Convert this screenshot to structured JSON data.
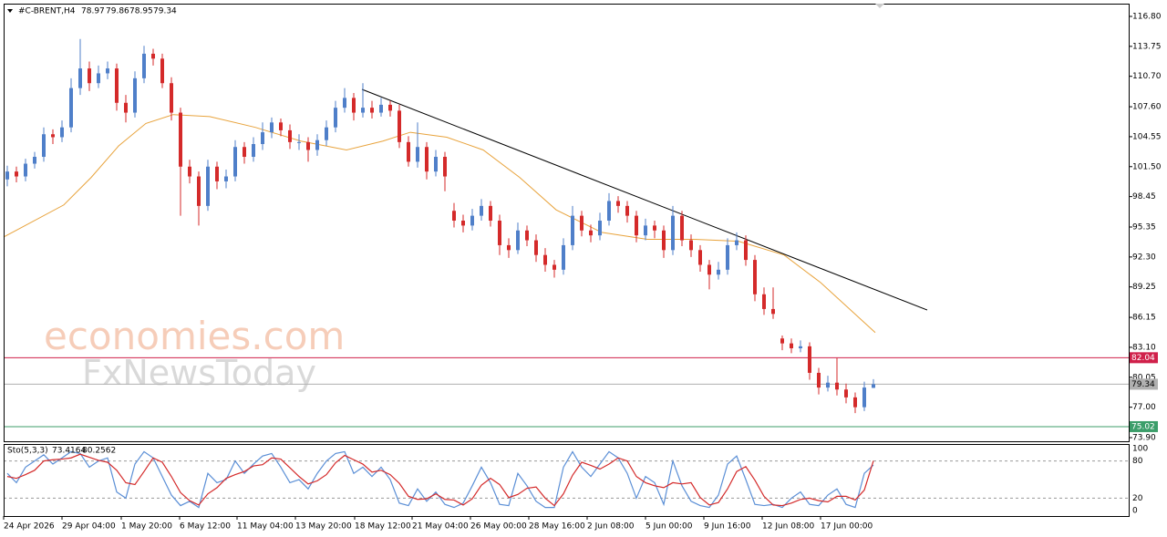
{
  "chart_data": {
    "type": "candlestick",
    "title": "#C-BRENT,H4",
    "watermark": [
      "economies.com",
      "FxNewsToday"
    ],
    "bull_color": "#4f7fc9",
    "bear_color": "#d42a2a",
    "xlim": [
      -0.4,
      123
    ],
    "ylim": [
      73.53,
      118.1
    ],
    "yticks": [
      {
        "value": 116.8,
        "label": "116.80"
      },
      113.75,
      {
        "value": 110.7,
        "label": "110.70"
      },
      {
        "value": 107.6,
        "label": "107.60"
      },
      104.55,
      {
        "value": 101.5,
        "label": "101.50"
      },
      98.45,
      95.35,
      {
        "value": 92.3,
        "label": "92.30"
      },
      89.25,
      86.15,
      {
        "value": 83.1,
        "label": "83.10"
      },
      80.05,
      {
        "value": 77.0,
        "label": "77.00"
      },
      {
        "value": 73.9,
        "label": "73.90"
      }
    ],
    "xticks": [
      {
        "value": -0.4,
        "label": "24 Apr 2026"
      },
      {
        "value": 6.0,
        "label": "29 Apr 04:00"
      },
      {
        "value": 12.5,
        "label": "1 May 20:00"
      },
      {
        "value": 18.9,
        "label": "6 May 12:00"
      },
      {
        "value": 25.2,
        "label": "11 May 04:00"
      },
      {
        "value": 31.6,
        "label": "13 May 20:00"
      },
      {
        "value": 38.1,
        "label": "18 May 12:00"
      },
      {
        "value": 44.4,
        "label": "21 May 04:00"
      },
      {
        "value": 50.8,
        "label": "26 May 00:00"
      },
      {
        "value": 57.2,
        "label": "28 May 16:00"
      },
      {
        "value": 63.6,
        "label": "2 Jun 08:00"
      },
      {
        "value": 70.0,
        "label": "5 Jun 00:00"
      },
      {
        "value": 76.4,
        "label": "9 Jun 16:00"
      },
      {
        "value": 82.8,
        "label": "12 Jun 08:00"
      },
      {
        "value": 89.2,
        "label": "17 Jun 00:00"
      }
    ],
    "candles": [
      [
        100.2,
        101.6,
        99.5,
        101.0
      ],
      [
        101.0,
        101.5,
        99.9,
        100.5
      ],
      [
        100.5,
        102.3,
        100.0,
        101.8
      ],
      [
        101.8,
        103.0,
        101.3,
        102.5
      ],
      [
        102.5,
        105.5,
        102.0,
        104.8
      ],
      [
        104.8,
        105.3,
        103.8,
        104.5
      ],
      [
        104.5,
        106.2,
        104.0,
        105.5
      ],
      [
        105.5,
        110.5,
        105.0,
        109.5
      ],
      [
        109.5,
        114.5,
        108.8,
        111.5
      ],
      [
        111.5,
        112.2,
        109.2,
        110.0
      ],
      [
        110.0,
        111.8,
        109.5,
        111.0
      ],
      [
        111.0,
        112.2,
        110.4,
        111.5
      ],
      [
        111.5,
        112.0,
        107.2,
        108.0
      ],
      [
        108.0,
        108.8,
        106.0,
        107.0
      ],
      [
        107.0,
        111.2,
        106.5,
        110.5
      ],
      [
        110.5,
        113.8,
        110.0,
        113.0
      ],
      [
        113.0,
        113.5,
        111.8,
        112.5
      ],
      [
        112.5,
        113.0,
        109.5,
        110.0
      ],
      [
        110.0,
        110.6,
        106.2,
        107.0
      ],
      [
        107.0,
        107.5,
        96.5,
        101.5
      ],
      [
        101.5,
        102.2,
        99.8,
        100.5
      ],
      [
        100.5,
        101.0,
        95.5,
        97.5
      ],
      [
        97.5,
        102.2,
        97.0,
        101.5
      ],
      [
        101.5,
        102.0,
        99.2,
        100.0
      ],
      [
        100.0,
        101.2,
        99.3,
        100.5
      ],
      [
        100.5,
        104.2,
        100.0,
        103.5
      ],
      [
        103.5,
        104.0,
        101.8,
        102.5
      ],
      [
        102.5,
        104.5,
        102.0,
        103.8
      ],
      [
        103.8,
        106.0,
        103.2,
        105.0
      ],
      [
        105.0,
        106.5,
        104.4,
        106.0
      ],
      [
        106.0,
        106.4,
        104.6,
        105.2
      ],
      [
        105.2,
        105.8,
        103.3,
        104.0
      ],
      [
        104.0,
        104.8,
        103.2,
        104.0
      ],
      [
        104.0,
        104.5,
        102.0,
        103.2
      ],
      [
        103.2,
        104.8,
        102.6,
        104.2
      ],
      [
        104.2,
        106.2,
        103.6,
        105.5
      ],
      [
        105.5,
        108.2,
        105.0,
        107.5
      ],
      [
        107.5,
        109.5,
        107.0,
        108.5
      ],
      [
        108.5,
        109.0,
        106.2,
        107.0
      ],
      [
        107.0,
        110.0,
        106.5,
        107.5
      ],
      [
        107.5,
        108.2,
        106.4,
        107.0
      ],
      [
        107.0,
        108.5,
        106.6,
        107.8
      ],
      [
        107.8,
        108.2,
        106.6,
        107.2
      ],
      [
        107.2,
        107.8,
        103.4,
        104.0
      ],
      [
        104.0,
        104.6,
        101.5,
        102.0
      ],
      [
        102.0,
        106.0,
        101.4,
        103.5
      ],
      [
        103.5,
        104.0,
        100.2,
        101.0
      ],
      [
        101.0,
        103.2,
        100.5,
        102.5
      ],
      [
        102.5,
        103.0,
        99.0,
        100.5
      ],
      [
        97.0,
        97.8,
        95.3,
        96.0
      ],
      [
        96.0,
        96.6,
        94.8,
        95.5
      ],
      [
        95.5,
        97.2,
        95.0,
        96.5
      ],
      [
        96.5,
        98.2,
        96.0,
        97.5
      ],
      [
        97.5,
        98.0,
        95.4,
        96.0
      ],
      [
        96.0,
        96.6,
        92.5,
        93.5
      ],
      [
        93.5,
        94.2,
        92.2,
        93.0
      ],
      [
        93.0,
        95.8,
        92.6,
        95.0
      ],
      [
        95.0,
        95.5,
        93.4,
        94.0
      ],
      [
        94.0,
        94.6,
        91.8,
        92.5
      ],
      [
        92.5,
        93.2,
        90.8,
        91.5
      ],
      [
        91.5,
        92.0,
        90.2,
        91.0
      ],
      [
        91.0,
        94.2,
        90.5,
        93.5
      ],
      [
        93.5,
        97.5,
        93.0,
        96.5
      ],
      [
        96.5,
        97.0,
        94.4,
        95.0
      ],
      [
        95.0,
        95.6,
        93.8,
        94.5
      ],
      [
        94.5,
        96.8,
        94.0,
        96.0
      ],
      [
        96.0,
        98.8,
        95.5,
        98.0
      ],
      [
        98.0,
        98.5,
        96.8,
        97.5
      ],
      [
        97.5,
        98.0,
        95.8,
        96.5
      ],
      [
        96.5,
        97.0,
        93.8,
        94.5
      ],
      [
        94.5,
        96.2,
        94.0,
        95.5
      ],
      [
        95.5,
        96.0,
        94.2,
        95.0
      ],
      [
        95.0,
        95.5,
        92.2,
        93.0
      ],
      [
        93.0,
        97.5,
        92.5,
        96.5
      ],
      [
        96.5,
        97.0,
        93.4,
        94.0
      ],
      [
        94.0,
        94.6,
        92.3,
        93.0
      ],
      [
        93.0,
        93.5,
        90.8,
        91.5
      ],
      [
        91.5,
        92.0,
        89.0,
        90.5
      ],
      [
        90.5,
        91.8,
        90.0,
        91.0
      ],
      [
        91.0,
        94.2,
        90.5,
        93.5
      ],
      [
        93.5,
        94.8,
        93.0,
        94.0
      ],
      [
        94.0,
        94.5,
        91.4,
        92.0
      ],
      [
        92.0,
        92.5,
        87.8,
        88.5
      ],
      [
        88.5,
        89.2,
        86.4,
        87.0
      ],
      [
        87.0,
        89.2,
        86.0,
        86.5
      ],
      [
        84.0,
        84.3,
        82.8,
        83.5
      ],
      [
        83.5,
        84.0,
        82.5,
        83.0
      ],
      [
        83.0,
        83.8,
        82.6,
        83.2
      ],
      [
        83.2,
        83.6,
        79.8,
        80.5
      ],
      [
        80.5,
        81.0,
        78.3,
        79.0
      ],
      [
        79.0,
        80.2,
        78.6,
        79.5
      ],
      [
        79.5,
        82.0,
        78.2,
        78.8
      ],
      [
        78.8,
        79.4,
        77.4,
        78.0
      ],
      [
        78.0,
        78.5,
        76.4,
        77.0
      ],
      [
        77.0,
        79.6,
        76.6,
        79.0
      ],
      [
        78.97,
        79.86,
        78.95,
        79.34
      ]
    ],
    "ma": {
      "color": "#e8a33c",
      "x": [
        -0.4,
        6.2,
        9.2,
        12.2,
        15.2,
        18.2,
        22.2,
        27.2,
        32.2,
        37.2,
        41.2,
        44.2,
        48.2,
        52.2,
        56.2,
        60.2,
        65.2,
        70.2,
        75.2,
        80.2,
        85.2,
        89.2,
        95.2
      ],
      "values": [
        94.33,
        97.6,
        100.4,
        103.6,
        105.9,
        106.8,
        106.6,
        105.5,
        104.1,
        103.2,
        104.1,
        105.0,
        104.5,
        103.2,
        100.4,
        97.1,
        94.8,
        94.1,
        94.1,
        93.9,
        92.5,
        89.7,
        84.6
      ]
    },
    "trendline": {
      "color": "#000000",
      "x": [
        38.9,
        100.9
      ],
      "values": [
        109.37,
        86.9
      ]
    },
    "levels": [
      {
        "value": 82.04,
        "color": "#d0204a",
        "label_color": "#ffffff"
      },
      {
        "value": 75.02,
        "color": "#3c9e6a",
        "label_color": "#ffffff"
      },
      {
        "value": 79.34,
        "color": "#b0b0b0",
        "label_color": "#000000"
      }
    ],
    "stochastic": {
      "title": "Sto(5,3,3)",
      "ylim": [
        -8.8,
        107.4
      ],
      "yticks": [
        100,
        80,
        20,
        0
      ],
      "levels": [
        80,
        20
      ],
      "series": [
        {
          "name": "main",
          "color": "#5b8fd6",
          "values": [
            60,
            45,
            70,
            80,
            90,
            75,
            85,
            95,
            92,
            70,
            80,
            85,
            30,
            20,
            75,
            95,
            85,
            55,
            25,
            8,
            15,
            5,
            60,
            45,
            50,
            80,
            60,
            75,
            88,
            92,
            70,
            45,
            50,
            35,
            60,
            80,
            92,
            95,
            60,
            70,
            55,
            70,
            50,
            12,
            8,
            35,
            15,
            30,
            10,
            5,
            12,
            40,
            70,
            45,
            10,
            8,
            60,
            40,
            15,
            5,
            5,
            70,
            95,
            70,
            55,
            75,
            95,
            85,
            60,
            20,
            55,
            45,
            10,
            80,
            40,
            15,
            8,
            5,
            25,
            75,
            88,
            50,
            10,
            8,
            10,
            5,
            20,
            30,
            10,
            8,
            25,
            35,
            10,
            5,
            60,
            73.4164
          ]
        },
        {
          "name": "signal",
          "color": "#d42a2a",
          "values": [
            55,
            52,
            58,
            65,
            80,
            82,
            83,
            85,
            91,
            86,
            81,
            78,
            65,
            45,
            42,
            63,
            85,
            78,
            55,
            29,
            16,
            9,
            27,
            37,
            52,
            58,
            63,
            72,
            74,
            85,
            83,
            69,
            55,
            43,
            48,
            58,
            77,
            89,
            82,
            75,
            62,
            65,
            58,
            44,
            23,
            18,
            19,
            27,
            18,
            17,
            9,
            19,
            41,
            52,
            42,
            21,
            26,
            36,
            38,
            20,
            8,
            27,
            57,
            78,
            73,
            67,
            75,
            85,
            80,
            55,
            45,
            40,
            37,
            45,
            43,
            45,
            21,
            9,
            13,
            35,
            63,
            71,
            49,
            23,
            9,
            8,
            12,
            18,
            20,
            16,
            14,
            23,
            23,
            17,
            33,
            80.2562
          ]
        }
      ]
    }
  }
}
